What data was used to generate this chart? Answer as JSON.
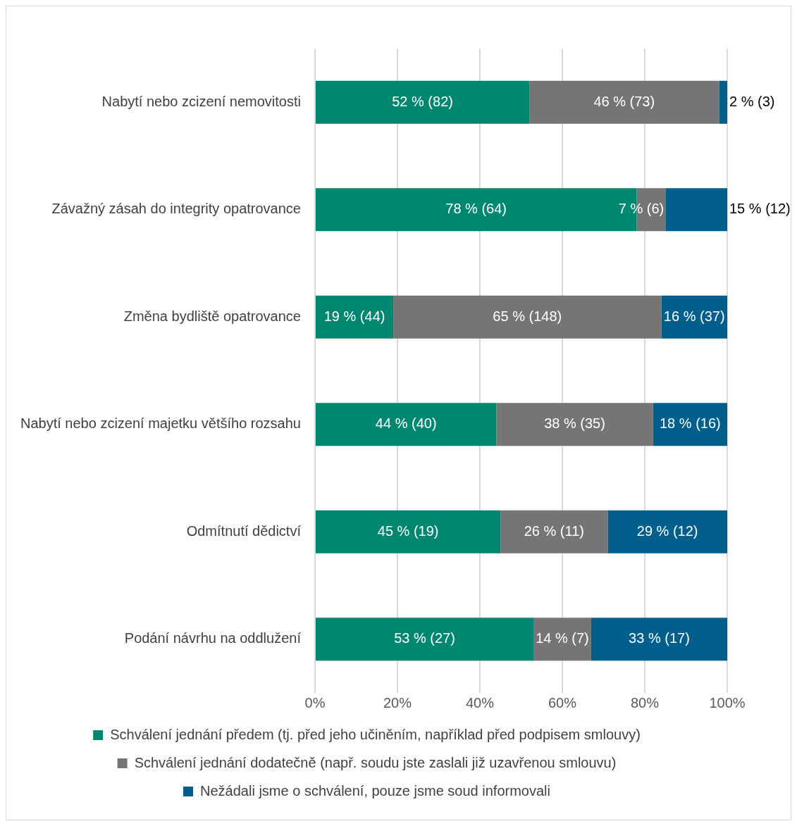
{
  "chart_data": {
    "type": "bar",
    "orientation": "horizontal",
    "stacked": true,
    "categories": [
      "Nabytí nebo zcizení nemovitosti",
      "Závažný zásah do integrity opatrovance",
      "Změna bydliště opatrovance",
      "Nabytí nebo zcizení majetku většího rozsahu",
      "Odmítnutí dědictví",
      "Podání návrhu na oddlužení"
    ],
    "series": [
      {
        "name": "Schválení jednání předem (tj. před jeho učiněním, například před podpisem smlouvy)",
        "color": "#00876f",
        "values": [
          52,
          78,
          19,
          44,
          45,
          53
        ],
        "value_labels": [
          "52 % (82)",
          "78 % (64)",
          "19 % (44)",
          "44 % (40)",
          "45 % (19)",
          "53 % (27)"
        ]
      },
      {
        "name": "Schválení jednání dodatečně (např. soudu jste zaslali již uzavřenou smlouvu)",
        "color": "#757575",
        "values": [
          46,
          7,
          65,
          38,
          26,
          14
        ],
        "value_labels": [
          "46 % (73)",
          "7 % (6)",
          "65 % (148)",
          "38 % (35)",
          "26 % (11)",
          "14 % (7)"
        ]
      },
      {
        "name": "Nežádali jsme o schválení, pouze jsme soud informovali",
        "color": "#005f8c",
        "values": [
          2,
          15,
          16,
          18,
          29,
          33
        ],
        "value_labels": [
          "2 % (3)",
          "15 % (12)",
          "16 % (37)",
          "18 % (16)",
          "29 % (12)",
          "33 % (17)"
        ]
      }
    ],
    "xlim": [
      0,
      100
    ],
    "xticks": [
      {
        "value": 0,
        "label": "0%"
      },
      {
        "value": 20,
        "label": "20%"
      },
      {
        "value": 40,
        "label": "40%"
      },
      {
        "value": 60,
        "label": "60%"
      },
      {
        "value": 80,
        "label": "80%"
      },
      {
        "value": 100,
        "label": "100%"
      }
    ],
    "grid": "x",
    "legend": "bottom"
  }
}
